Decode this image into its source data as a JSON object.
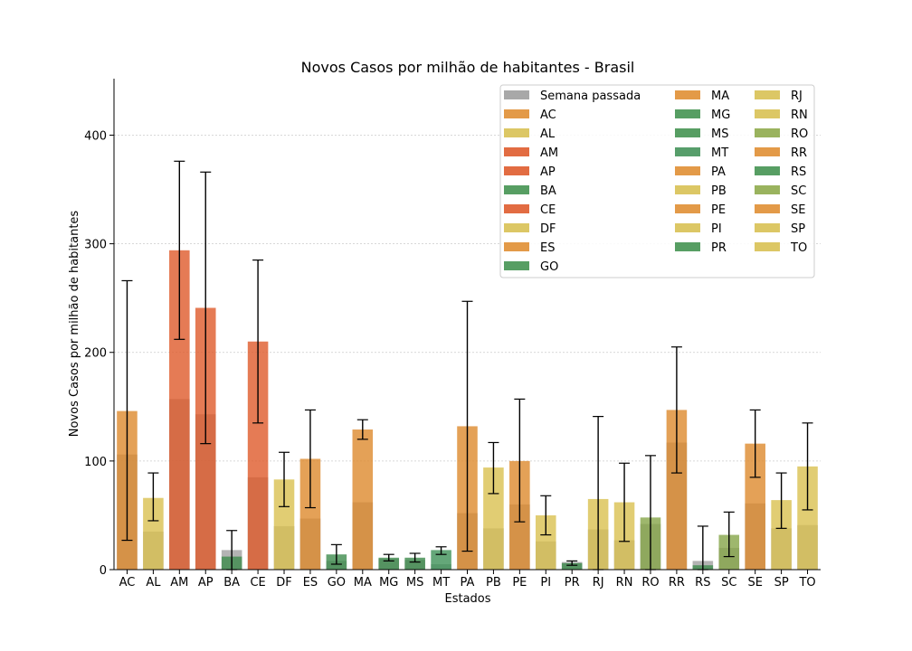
{
  "chart_data": {
    "type": "bar",
    "title": "Novos Casos por milhão de habitantes - Brasil",
    "xlabel": "Estados",
    "ylabel": "Novos Casos por milhão de habitantes",
    "ylim": [
      0,
      452
    ],
    "yticks": [
      0,
      100,
      200,
      300,
      400
    ],
    "grid": true,
    "legend_position": "top-right",
    "categories": [
      "AC",
      "AL",
      "AM",
      "AP",
      "BA",
      "CE",
      "DF",
      "ES",
      "GO",
      "MA",
      "MG",
      "MS",
      "MT",
      "PA",
      "PB",
      "PE",
      "PI",
      "PR",
      "RJ",
      "RN",
      "RO",
      "RR",
      "RS",
      "SC",
      "SE",
      "SP",
      "TO"
    ],
    "last_week_series": {
      "name": "Semana passada",
      "color": "#999999",
      "values": [
        106,
        35,
        157,
        143,
        18,
        85,
        40,
        47,
        8,
        62,
        10,
        9,
        5,
        52,
        38,
        60,
        26,
        7,
        37,
        27,
        42,
        117,
        8,
        20,
        61,
        38,
        41
      ]
    },
    "current_series": {
      "values": [
        146,
        66,
        294,
        241,
        12,
        210,
        83,
        102,
        14,
        129,
        11,
        11,
        18,
        132,
        94,
        100,
        50,
        6,
        65,
        62,
        48,
        147,
        4,
        32,
        116,
        64,
        95
      ],
      "error_low": [
        27,
        45,
        212,
        116,
        0,
        135,
        58,
        57,
        5,
        120,
        8,
        7,
        14,
        17,
        70,
        44,
        32,
        4,
        0,
        26,
        0,
        89,
        0,
        12,
        85,
        38,
        55
      ],
      "error_high": [
        266,
        89,
        376,
        366,
        36,
        285,
        108,
        147,
        23,
        138,
        14,
        15,
        21,
        247,
        117,
        157,
        68,
        8,
        141,
        98,
        105,
        205,
        40,
        53,
        147,
        89,
        135
      ],
      "colors": [
        "#dd8a2d",
        "#d9c050",
        "#df5a2b",
        "#df5a2b",
        "#3d8b4c",
        "#df5a2b",
        "#d9c050",
        "#dd8a2d",
        "#3d8b4c",
        "#dd8a2d",
        "#3d8b4c",
        "#3d8b4c",
        "#3d9158",
        "#dd8a2d",
        "#d9c050",
        "#dd8a2d",
        "#d9c050",
        "#3d8b4c",
        "#d9c050",
        "#d9c050",
        "#86a548",
        "#dd8a2d",
        "#3d8b4c",
        "#86a548",
        "#dd8a2d",
        "#d9c050",
        "#d9c050"
      ]
    },
    "legend": {
      "columns": [
        [
          {
            "label": "Semana passada",
            "color": "#a8a8a8"
          },
          {
            "label": "AC",
            "color": "#e39a48"
          },
          {
            "label": "AL",
            "color": "#dcc765"
          },
          {
            "label": "AM",
            "color": "#e26c42"
          },
          {
            "label": "AP",
            "color": "#e26c42"
          },
          {
            "label": "BA",
            "color": "#579e63"
          },
          {
            "label": "CE",
            "color": "#e26c42"
          },
          {
            "label": "DF",
            "color": "#dcc765"
          },
          {
            "label": "ES",
            "color": "#e39a48"
          },
          {
            "label": "GO",
            "color": "#579e63"
          }
        ],
        [
          {
            "label": "MA",
            "color": "#e39a48"
          },
          {
            "label": "MG",
            "color": "#579e63"
          },
          {
            "label": "MS",
            "color": "#579e63"
          },
          {
            "label": "MT",
            "color": "#579e6b"
          },
          {
            "label": "PA",
            "color": "#e39a48"
          },
          {
            "label": "PB",
            "color": "#dcc765"
          },
          {
            "label": "PE",
            "color": "#e39a48"
          },
          {
            "label": "PI",
            "color": "#dcc765"
          },
          {
            "label": "PR",
            "color": "#579e63"
          }
        ],
        [
          {
            "label": "RJ",
            "color": "#dcc765"
          },
          {
            "label": "RN",
            "color": "#dcc765"
          },
          {
            "label": "RO",
            "color": "#9ab35e"
          },
          {
            "label": "RR",
            "color": "#e39a48"
          },
          {
            "label": "RS",
            "color": "#579e63"
          },
          {
            "label": "SC",
            "color": "#9ab35e"
          },
          {
            "label": "SE",
            "color": "#e39a48"
          },
          {
            "label": "SP",
            "color": "#dcc765"
          },
          {
            "label": "TO",
            "color": "#dcc765"
          }
        ]
      ]
    }
  }
}
